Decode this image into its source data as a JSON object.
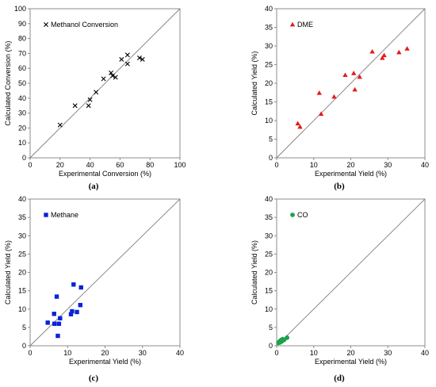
{
  "colors": {
    "methane": "#0a22d8",
    "dme": "#e31a1c",
    "co": "#1aa34a",
    "axis": "#8c8c8c",
    "parity": "#7f7f7f"
  },
  "chart_data": [
    {
      "type": "scatter",
      "panel_label": "(a)",
      "xlabel": "Experimental Conversion (%)",
      "ylabel": "Calculated Conversion (%)",
      "xlim": [
        0,
        100
      ],
      "ylim": [
        0,
        100
      ],
      "xticks": [
        0,
        20,
        40,
        60,
        80,
        100
      ],
      "yticks": [
        0,
        10,
        20,
        30,
        40,
        50,
        60,
        70,
        80,
        90,
        100
      ],
      "parity_line": true,
      "legend_position": "top-left",
      "series": [
        {
          "name": "Methanol Conversion",
          "marker": "x",
          "color": "#000000",
          "points": [
            [
              20,
              22
            ],
            [
              30,
              35
            ],
            [
              39,
              35
            ],
            [
              40,
              39
            ],
            [
              44,
              44
            ],
            [
              49,
              53
            ],
            [
              54,
              57
            ],
            [
              55,
              55
            ],
            [
              57,
              54
            ],
            [
              61,
              66
            ],
            [
              65,
              69
            ],
            [
              65,
              63
            ],
            [
              73,
              67
            ],
            [
              75,
              66
            ]
          ]
        }
      ]
    },
    {
      "type": "scatter",
      "panel_label": "(b)",
      "xlabel": "Experimental Yield (%)",
      "ylabel": "Calculated Yield (%)",
      "xlim": [
        0,
        40
      ],
      "ylim": [
        0,
        40
      ],
      "xticks": [
        0,
        10,
        20,
        30,
        40
      ],
      "yticks": [
        0,
        5,
        10,
        15,
        20,
        25,
        30,
        35,
        40
      ],
      "parity_line": true,
      "legend_position": "top-left",
      "series": [
        {
          "name": "DME",
          "marker": "triangle",
          "color": "#e31a1c",
          "points": [
            [
              5.7,
              9.2
            ],
            [
              6.3,
              8.3
            ],
            [
              11.5,
              17.4
            ],
            [
              12.0,
              11.8
            ],
            [
              15.5,
              16.4
            ],
            [
              18.5,
              22.2
            ],
            [
              20.8,
              22.7
            ],
            [
              21.1,
              18.3
            ],
            [
              22.4,
              21.7
            ],
            [
              25.8,
              28.5
            ],
            [
              28.5,
              26.8
            ],
            [
              29.0,
              27.5
            ],
            [
              33.0,
              28.3
            ],
            [
              35.2,
              29.3
            ]
          ]
        }
      ]
    },
    {
      "type": "scatter",
      "panel_label": "(c)",
      "xlabel": "Experimental Yield (%)",
      "ylabel": "Calculated Yield (%)",
      "xlim": [
        0,
        40
      ],
      "ylim": [
        0,
        40
      ],
      "xticks": [
        0,
        10,
        20,
        30,
        40
      ],
      "yticks": [
        0,
        5,
        10,
        15,
        20,
        25,
        30,
        35,
        40
      ],
      "parity_line": true,
      "legend_position": "top-left",
      "series": [
        {
          "name": "Methane",
          "marker": "square",
          "color": "#0a22d8",
          "points": [
            [
              4.7,
              6.3
            ],
            [
              6.4,
              8.7
            ],
            [
              6.5,
              6.0
            ],
            [
              7.1,
              13.4
            ],
            [
              7.4,
              2.7
            ],
            [
              7.7,
              6.0
            ],
            [
              8.0,
              7.5
            ],
            [
              10.9,
              8.6
            ],
            [
              11.2,
              9.4
            ],
            [
              11.6,
              16.7
            ],
            [
              12.5,
              9.2
            ],
            [
              13.4,
              11.1
            ],
            [
              13.6,
              15.9
            ]
          ]
        }
      ]
    },
    {
      "type": "scatter",
      "panel_label": "(d)",
      "xlabel": "Experimental Yield (%)",
      "ylabel": "Calculated Yield (%)",
      "xlim": [
        0,
        40
      ],
      "ylim": [
        0,
        40
      ],
      "xticks": [
        0,
        10,
        20,
        30,
        40
      ],
      "yticks": [
        0,
        5,
        10,
        15,
        20,
        25,
        30,
        35,
        40
      ],
      "parity_line": true,
      "legend_position": "top-left",
      "series": [
        {
          "name": "CO",
          "marker": "circle",
          "color": "#1aa34a",
          "points": [
            [
              0.5,
              0.8
            ],
            [
              0.7,
              1.1
            ],
            [
              0.9,
              0.9
            ],
            [
              1.0,
              1.4
            ],
            [
              1.2,
              1.1
            ],
            [
              1.3,
              1.6
            ],
            [
              1.5,
              1.3
            ],
            [
              1.6,
              1.8
            ],
            [
              2.0,
              1.6
            ],
            [
              2.8,
              2.2
            ]
          ]
        }
      ]
    }
  ]
}
